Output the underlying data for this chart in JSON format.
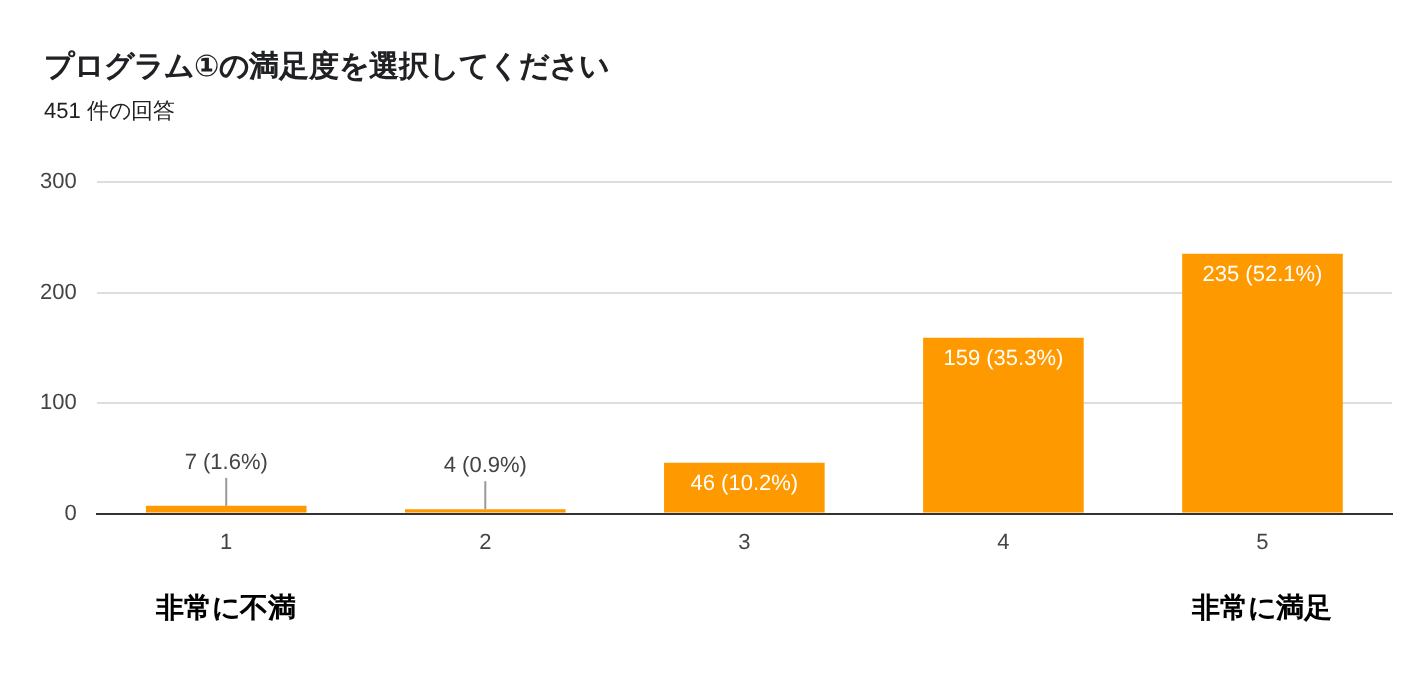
{
  "chart_data": {
    "type": "bar",
    "title": "プログラム①の満足度を選択してください",
    "subtitle": "451 件の回答",
    "categories": [
      "1",
      "2",
      "3",
      "4",
      "5"
    ],
    "values": [
      7,
      4,
      46,
      159,
      235
    ],
    "value_labels": [
      "7 (1.6%)",
      "4 (0.9%)",
      "46 (10.2%)",
      "159 (35.3%)",
      "235 (52.1%)"
    ],
    "color": "#ff9900",
    "ylim": [
      0,
      300
    ],
    "yticks": [
      0,
      100,
      200,
      300
    ],
    "grid": "y",
    "annotations": [
      "非常に不満",
      "非常に満足"
    ]
  }
}
